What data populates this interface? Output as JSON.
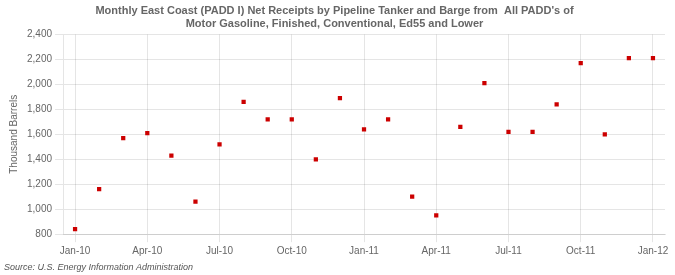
{
  "chart_data": {
    "type": "scatter",
    "title": "Monthly East Coast (PADD I) Net Receipts by Pipeline Tanker and Barge from  All PADD's of\nMotor Gasoline, Finished, Conventional, Ed55 and Lower",
    "y_label": "Thousand Barrels",
    "annotations": [
      "Source: U.S. Energy Information Administration"
    ],
    "categories": [
      "Jan-10",
      null,
      null,
      "Apr-10",
      null,
      null,
      "Jul-10",
      null,
      null,
      "Oct-10",
      null,
      null,
      "Jan-11",
      null,
      null,
      "Apr-11",
      null,
      null,
      "Jul-11",
      null,
      null,
      "Oct-11",
      null,
      null,
      "Jan-12"
    ],
    "values": [
      840,
      1160,
      1570,
      1610,
      1430,
      1060,
      1520,
      1860,
      1720,
      1720,
      1400,
      1890,
      1640,
      1720,
      1100,
      950,
      1660,
      2010,
      1620,
      1620,
      1840,
      2170,
      1600,
      2210,
      2210
    ],
    "color": "#cc0000",
    "marker": "square",
    "ylim": [
      800,
      2400
    ],
    "yticks": [
      800,
      {
        "value": 1000,
        "label": "1,000"
      },
      {
        "value": 1200,
        "label": "1,200"
      },
      {
        "value": 1400,
        "label": "1,400"
      },
      {
        "value": 1600,
        "label": "1,600"
      },
      {
        "value": 1800,
        "label": "1,800"
      },
      {
        "value": 2000,
        "label": "2,000"
      },
      {
        "value": 2200,
        "label": "2,200"
      },
      {
        "value": 2400,
        "label": "2,400"
      }
    ],
    "grid": true
  }
}
